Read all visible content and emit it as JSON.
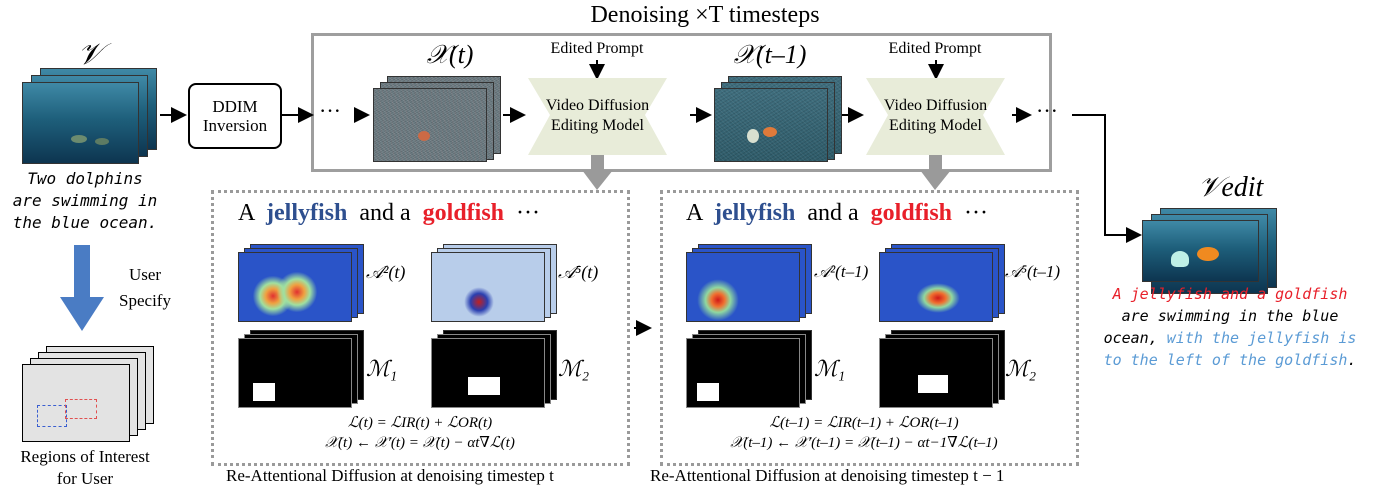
{
  "title": "Denoising ×T timesteps",
  "input": {
    "symbol": "𝒱",
    "caption_lines": [
      "Two dolphins",
      "are swimming in",
      "the blue ocean."
    ]
  },
  "user_specify": {
    "lines": [
      "User",
      "Specify"
    ]
  },
  "regions": {
    "caption_lines": [
      "Regions of Interest",
      "for User"
    ]
  },
  "ddim": {
    "lines": [
      "DDIM",
      "Inversion"
    ]
  },
  "steps": {
    "xt": "𝒳(t)",
    "xt1": "𝒳(t–1)",
    "ellipsis": "···"
  },
  "model": {
    "prompt_label": "Edited Prompt",
    "lines": [
      "Video Diffusion",
      "Editing Model"
    ]
  },
  "prompt_tokens": {
    "a1": "A",
    "jelly": "jellyfish",
    "and": "and a",
    "gold": "goldfish",
    "dots": "···"
  },
  "panel_left": {
    "attn_a": "𝒜²(t)",
    "attn_b": "𝒜⁵(t)",
    "mask_a": "ℳ₁",
    "mask_b": "ℳ₂",
    "eq1": "ℒ(t) = ℒIR(t) + ℒOR(t)",
    "eq2": "𝒳(t) ← 𝒳′(t) = 𝒳(t) − αt∇ℒ(t)",
    "caption": "Re-Attentional Diffusion at denoising timestep t"
  },
  "panel_right": {
    "attn_a": "𝒜²(t–1)",
    "attn_b": "𝒜⁵(t–1)",
    "mask_a": "ℳ₁",
    "mask_b": "ℳ₂",
    "eq1": "ℒ(t–1) = ℒIR(t–1) + ℒOR(t–1)",
    "eq2": "𝒳(t–1) ← 𝒳′(t–1) = 𝒳(t–1) − αt−1∇ℒ(t–1)",
    "caption": "Re-Attentional Diffusion at denoising timestep t − 1"
  },
  "output": {
    "symbol": "𝒱edit",
    "line1": "A jellyfish and a goldfish",
    "line2": "are swimming in the blue",
    "line3_black": "ocean,",
    "line3_blue": "with the jellyfish is",
    "line4_blue": "to the left of the goldfish",
    "line4_end": "."
  },
  "colors": {
    "jellyfish": "#2e4f8f",
    "goldfish": "#e8202a",
    "red_caption": "#e8202a",
    "blue_caption": "#5b9bd5",
    "model_fill": "#e8ecd9",
    "arrow_blue": "#4a7cc4",
    "panel_border": "#9a9a9a"
  }
}
